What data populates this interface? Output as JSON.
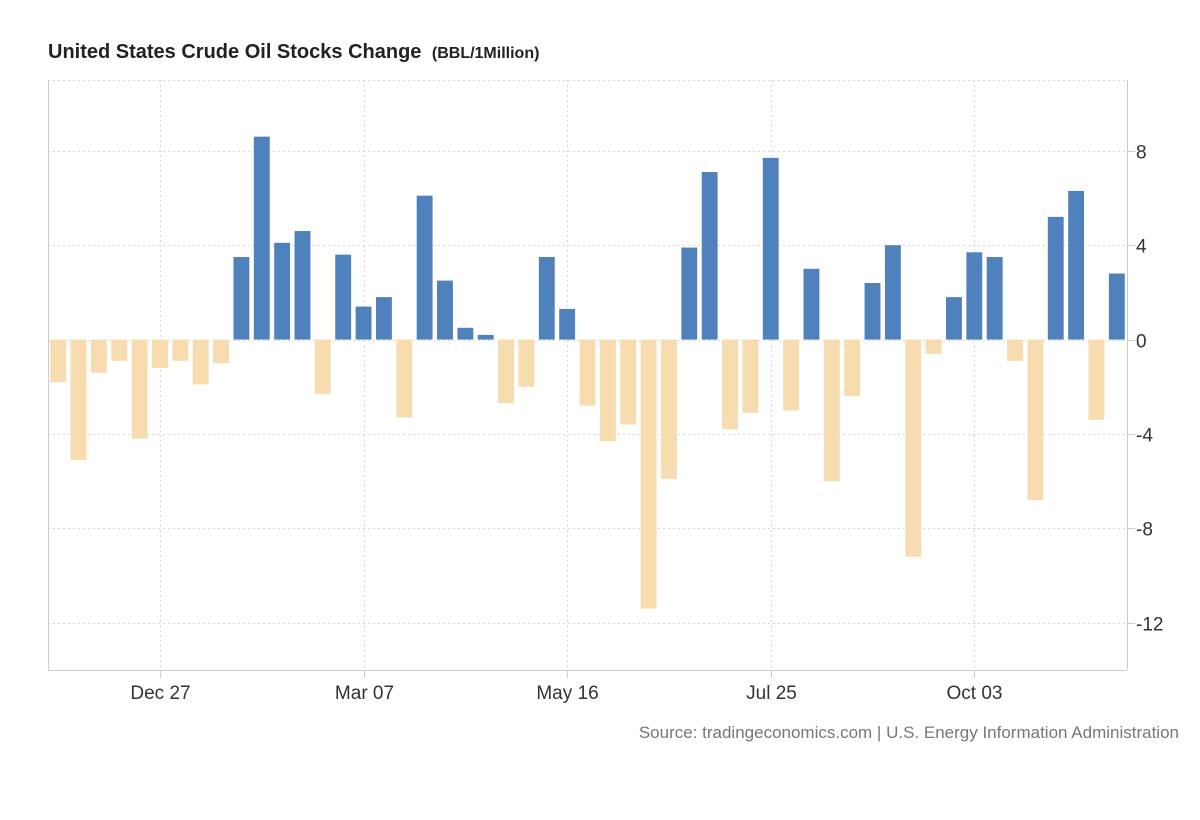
{
  "chart_data": {
    "type": "bar",
    "title": "United States Crude Oil Stocks Change",
    "unit": "(BBL/1Million)",
    "source": "Source: tradingeconomics.com | U.S. Energy Information Administration",
    "ylim": [
      -14,
      11
    ],
    "yticks": [
      8,
      4,
      0,
      -4,
      -8,
      -12
    ],
    "xtick_labels": [
      "Dec 27",
      "Mar 07",
      "May 16",
      "Jul 25",
      "Oct 03"
    ],
    "xtick_positions": [
      5.5,
      15.5,
      25.5,
      35.5,
      45.5
    ],
    "colors": {
      "positive": "#4f81bd",
      "negative": "#f6dcae",
      "grid": "#d6d6d6",
      "axis": "#cccccc"
    },
    "values": [
      -1.8,
      -5.1,
      -1.4,
      -0.9,
      -4.2,
      -1.2,
      -0.9,
      -1.9,
      -1.0,
      3.5,
      8.6,
      4.1,
      4.6,
      -2.3,
      3.6,
      1.4,
      1.8,
      -3.3,
      6.1,
      2.5,
      0.5,
      0.2,
      -2.7,
      -2.0,
      3.5,
      1.3,
      -2.8,
      -4.3,
      -3.6,
      -11.4,
      -5.9,
      3.9,
      7.1,
      -3.8,
      -3.1,
      7.7,
      -3.0,
      3.0,
      -6.0,
      -2.4,
      2.4,
      4.0,
      -9.2,
      -0.6,
      1.8,
      3.7,
      3.5,
      -0.9,
      -6.8,
      5.2,
      6.3,
      -3.4,
      2.8
    ]
  }
}
